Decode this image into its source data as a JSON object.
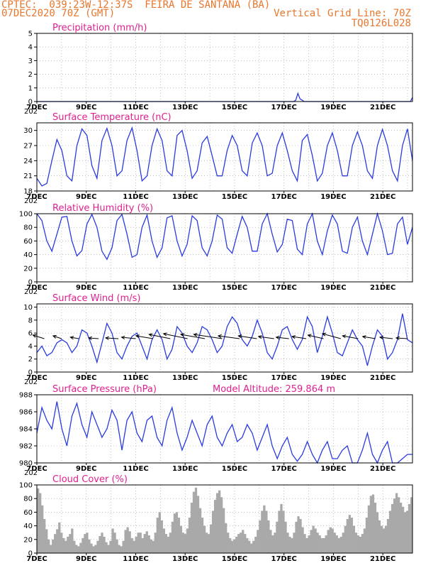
{
  "header": {
    "station": "CPTEC:  039:23W-12:37S  FEIRA DE SANTANA (BA)",
    "date": "07DEC2020 70Z (GMT)",
    "grid_line": "Vertical Grid Line: 70Z",
    "code": "TQ0126L028"
  },
  "colors": {
    "line": "#2a3be0",
    "title": "#e0208f",
    "header": "#e8772e",
    "bars": "#a9a9a9",
    "arrows": "#000000",
    "grid": "#9a9a9a"
  },
  "x_labels": [
    "7DEC",
    "9DEC",
    "11DEC",
    "13DEC",
    "15DEC",
    "17DEC",
    "19DEC",
    "21DEC"
  ],
  "x_subtext": "202",
  "chart_data": [
    {
      "type": "line",
      "title": "Precipitation (mm/h)",
      "ylim": [
        0,
        5
      ],
      "yticks": [
        "0",
        "1",
        "2",
        "3",
        "4",
        "5"
      ],
      "grid": true,
      "x_range_days": [
        7,
        22.2
      ],
      "series": [
        {
          "values": [
            0,
            0,
            0,
            0,
            0,
            0,
            0,
            0,
            0,
            0,
            0,
            0,
            0,
            0,
            0,
            0,
            0,
            0,
            0,
            0,
            0,
            0,
            0,
            0,
            0,
            0,
            0,
            0,
            0,
            0,
            0,
            0,
            0,
            0,
            0,
            0,
            0,
            0,
            0,
            0,
            0,
            0,
            0,
            0,
            0,
            0,
            0,
            0,
            0,
            0,
            0,
            0,
            0,
            0,
            0,
            0,
            0,
            0,
            0,
            0,
            0,
            0,
            0,
            0,
            0,
            0,
            0,
            0,
            0,
            0,
            0,
            0,
            0,
            0,
            0,
            0,
            0,
            0,
            0,
            0,
            0,
            0,
            0,
            0,
            0,
            0,
            0,
            0,
            0,
            0,
            0,
            0,
            0,
            0,
            0,
            0,
            0,
            0,
            0,
            0,
            0,
            0,
            0,
            0,
            0,
            0,
            0,
            0,
            0,
            0,
            0,
            0,
            0,
            0,
            0,
            0,
            0,
            0,
            0,
            0,
            0,
            0,
            0.1,
            0.6,
            0.2,
            0.1,
            0,
            0,
            0,
            0,
            0,
            0,
            0,
            0,
            0,
            0,
            0,
            0,
            0,
            0,
            0,
            0,
            0,
            0,
            0,
            0,
            0,
            0,
            0,
            0,
            0,
            0,
            0,
            0,
            0,
            0,
            0,
            0,
            0,
            0,
            0,
            0,
            0,
            0,
            0,
            0,
            0,
            0,
            0,
            0,
            0,
            0,
            0,
            0,
            0,
            0,
            0,
            0.3
          ]
        }
      ]
    },
    {
      "type": "line",
      "title": "Surface Temperature (nC)",
      "ylim": [
        18,
        31.5
      ],
      "yticks": [
        "18",
        "21",
        "24",
        "27",
        "30"
      ],
      "grid": true,
      "x_range_days": [
        7,
        22.2
      ],
      "series": [
        {
          "values": [
            20.5,
            19.0,
            19.5,
            24,
            28.2,
            26,
            21,
            20,
            27,
            30.3,
            29,
            23,
            20.5,
            28,
            30.4,
            27,
            21,
            22,
            28,
            30.5,
            26,
            20,
            21,
            27,
            30.3,
            28,
            22,
            21,
            29,
            30.0,
            26,
            20.5,
            22,
            27.5,
            28.8,
            25,
            21,
            21,
            26,
            29.0,
            27,
            22,
            21,
            27.5,
            29.5,
            27,
            21,
            21.5,
            27,
            29.5,
            26,
            22,
            20,
            28,
            29.2,
            25,
            20,
            21.5,
            27,
            29.5,
            26,
            21,
            21,
            27,
            29.7,
            27,
            22,
            20.5,
            27,
            30.2,
            27,
            22,
            20,
            27,
            30.3,
            24
          ]
        }
      ]
    },
    {
      "type": "line",
      "title": "Relative Humidity (%)",
      "ylim": [
        0,
        100
      ],
      "yticks": [
        "0",
        "20",
        "40",
        "60",
        "80",
        "100"
      ],
      "grid": true,
      "x_range_days": [
        7,
        22.2
      ],
      "series": [
        {
          "values": [
            100,
            90,
            60,
            45,
            70,
            95,
            96,
            60,
            38,
            46,
            85,
            99,
            80,
            45,
            33,
            50,
            90,
            99,
            70,
            36,
            40,
            80,
            98,
            60,
            36,
            50,
            94,
            97,
            60,
            38,
            55,
            97,
            90,
            50,
            38,
            60,
            98,
            92,
            50,
            42,
            70,
            96,
            80,
            45,
            45,
            85,
            100,
            70,
            44,
            55,
            92,
            90,
            48,
            40,
            85,
            100,
            60,
            40,
            75,
            98,
            85,
            45,
            42,
            80,
            95,
            60,
            40,
            70,
            100,
            75,
            40,
            42,
            85,
            95,
            55,
            80
          ]
        }
      ]
    },
    {
      "type": "line",
      "title": "Surface Wind (m/s)",
      "ylim": [
        0,
        10.5
      ],
      "yticks": [
        "0",
        "2",
        "4",
        "6",
        "8",
        "10"
      ],
      "grid": true,
      "x_range_days": [
        7,
        22.2
      ],
      "series": [
        {
          "values": [
            3,
            4,
            2.5,
            3,
            4.5,
            5,
            4.5,
            3,
            4,
            6.5,
            6,
            4,
            1.5,
            4.5,
            7.5,
            6,
            3,
            2,
            4,
            5.5,
            6,
            4,
            2,
            5,
            6.5,
            5,
            2,
            3.5,
            7,
            6,
            4,
            3,
            4.5,
            7,
            6.5,
            5,
            3,
            4,
            7,
            8.5,
            7.5,
            5,
            4,
            5.5,
            8,
            6,
            3,
            2,
            4,
            6.5,
            7,
            5,
            3.5,
            5,
            8.5,
            7,
            3,
            5.5,
            8.5,
            6,
            3,
            2.5,
            4.5,
            6.5,
            5,
            4,
            1,
            4,
            6.5,
            5.5,
            2,
            3,
            5,
            9,
            5,
            4.5
          ]
        }
      ],
      "arrow_day_positions": [
        7.3,
        8.0,
        8.7,
        9.5,
        10.3,
        11.0,
        11.7,
        12.4,
        13.1,
        13.8,
        14.5,
        15.2,
        15.9,
        16.6,
        17.2,
        17.9,
        18.6,
        19.3,
        20.0,
        20.7,
        21.4,
        22.0
      ],
      "arrow_dx": [
        -16,
        -12,
        -12,
        -14,
        -18,
        -20,
        -24,
        -30,
        -34,
        -34,
        -40,
        -30,
        -26,
        -22,
        -18,
        -20,
        -22,
        -26,
        -22,
        -18,
        -18,
        -16
      ],
      "arrow_dy": [
        -5,
        -4,
        -2,
        -1,
        -1,
        -2,
        -4,
        -6,
        -7,
        -6,
        -6,
        -4,
        -4,
        -3,
        -2,
        -3,
        -5,
        -7,
        -4,
        -3,
        -2,
        -1
      ]
    },
    {
      "type": "line",
      "title": "Surface Pressure (hPa)",
      "annotation": "Model Altitude: 259.864 m",
      "ylim": [
        980,
        988
      ],
      "yticks": [
        "980",
        "982",
        "984",
        "986",
        "988"
      ],
      "grid": true,
      "x_range_days": [
        7,
        22.2
      ],
      "series": [
        {
          "values": [
            983.5,
            986.5,
            985,
            984,
            987.2,
            984,
            982,
            985.5,
            987,
            984.5,
            983,
            986,
            984.5,
            983,
            984,
            986.2,
            985,
            981.5,
            985,
            986,
            983.5,
            982.5,
            985,
            985.5,
            983,
            982,
            985,
            986.5,
            983.5,
            981.5,
            983,
            985,
            983.5,
            982,
            984.5,
            985.5,
            983,
            982,
            983.5,
            984.5,
            982.5,
            983,
            984.5,
            983.5,
            981.5,
            983,
            984.5,
            982,
            980.5,
            982,
            983,
            981,
            980.2,
            981,
            982.5,
            981,
            980,
            981.5,
            982.5,
            980.5,
            980.5,
            981.5,
            982,
            980,
            980,
            981.5,
            983.5,
            981,
            980,
            981.5,
            982.5,
            980,
            980,
            980.5,
            981,
            981
          ]
        }
      ]
    },
    {
      "type": "bar",
      "title": "Cloud Cover (%)",
      "ylim": [
        0,
        100
      ],
      "yticks": [
        "0",
        "20",
        "40",
        "60",
        "80",
        "100"
      ],
      "grid": true,
      "x_range_days": [
        7,
        22.2
      ],
      "series": [
        {
          "values": [
            95,
            88,
            70,
            50,
            35,
            20,
            12,
            20,
            28,
            35,
            45,
            30,
            22,
            18,
            24,
            28,
            36,
            18,
            12,
            10,
            15,
            22,
            28,
            30,
            20,
            14,
            10,
            12,
            18,
            25,
            30,
            24,
            16,
            12,
            18,
            36,
            30,
            20,
            12,
            10,
            18,
            34,
            38,
            32,
            22,
            18,
            24,
            30,
            30,
            22,
            28,
            32,
            26,
            20,
            18,
            30,
            52,
            60,
            48,
            36,
            28,
            24,
            30,
            46,
            58,
            60,
            52,
            40,
            30,
            28,
            36,
            52,
            74,
            90,
            96,
            84,
            66,
            52,
            40,
            30,
            28,
            42,
            62,
            78,
            88,
            92,
            82,
            66,
            44,
            30,
            22,
            18,
            20,
            24,
            28,
            30,
            34,
            28,
            22,
            18,
            14,
            18,
            24,
            34,
            48,
            62,
            70,
            62,
            48,
            34,
            26,
            30,
            46,
            62,
            72,
            62,
            46,
            30,
            24,
            22,
            30,
            46,
            54,
            50,
            38,
            28,
            22,
            26,
            34,
            40,
            36,
            30,
            26,
            22,
            22,
            26,
            34,
            38,
            36,
            30,
            26,
            22,
            24,
            30,
            40,
            50,
            56,
            52,
            40,
            30,
            26,
            24,
            28,
            36,
            52,
            70,
            84,
            86,
            74,
            60,
            48,
            40,
            36,
            40,
            50,
            62,
            72,
            80,
            88,
            82,
            74,
            68,
            60,
            62,
            72,
            82
          ]
        }
      ]
    }
  ]
}
